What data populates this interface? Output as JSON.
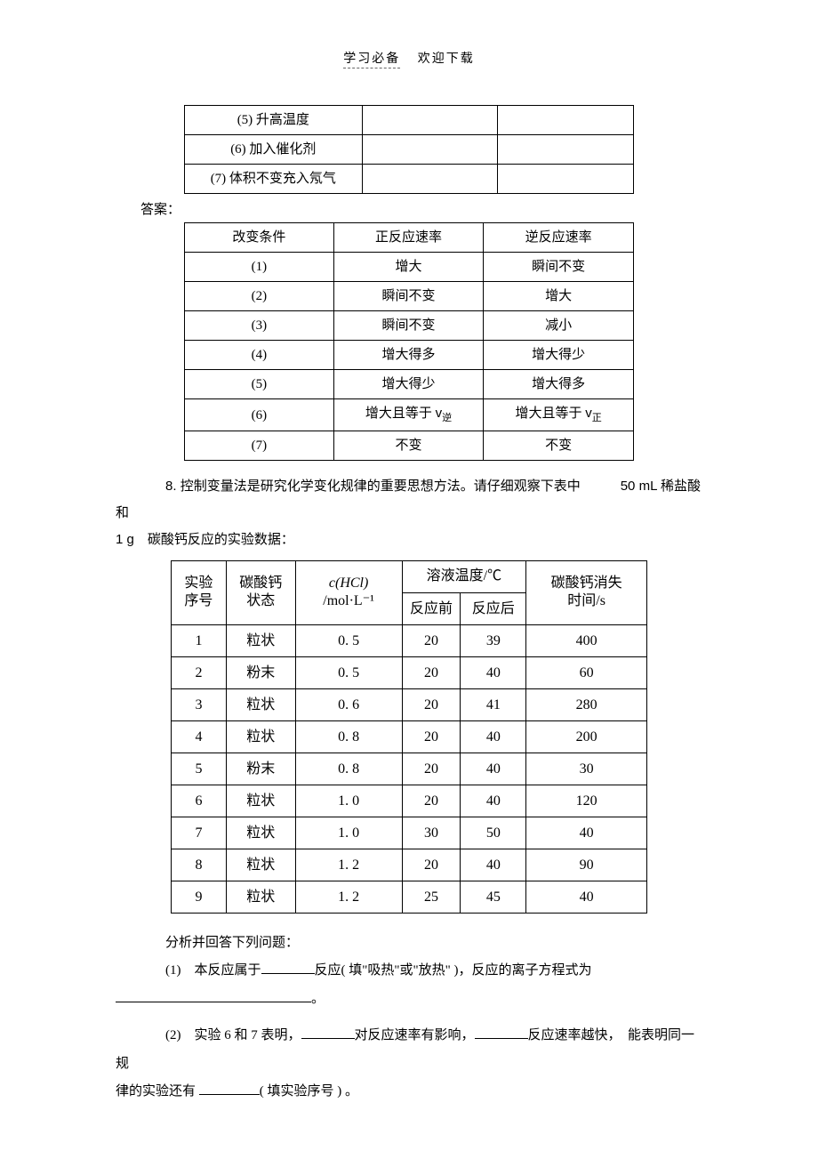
{
  "header": {
    "left": "学习必备",
    "right": "欢迎下载"
  },
  "table1": {
    "rows": [
      {
        "c1": "(5) 升高温度",
        "c2": "",
        "c3": ""
      },
      {
        "c1": "(6) 加入催化剂",
        "c2": "",
        "c3": ""
      },
      {
        "c1": "(7) 体积不变充入氖气",
        "c2": "",
        "c3": ""
      }
    ]
  },
  "answer_label": "答案：",
  "table2": {
    "header": {
      "c1": "改变条件",
      "c2": "正反应速率",
      "c3": "逆反应速率"
    },
    "rows": [
      {
        "c1": "(1)",
        "c2": "增大",
        "c3": "瞬间不变"
      },
      {
        "c1": "(2)",
        "c2": "瞬间不变",
        "c3": "增大"
      },
      {
        "c1": "(3)",
        "c2": "瞬间不变",
        "c3": "减小"
      },
      {
        "c1": "(4)",
        "c2": "增大得多",
        "c3": "增大得少"
      },
      {
        "c1": "(5)",
        "c2": "增大得少",
        "c3": "增大得多"
      },
      {
        "c1": "(6)",
        "c2_pre": "增大且等于 ",
        "c2_v": "v",
        "c2_sub": "逆",
        "c3_pre": "增大且等于 ",
        "c3_v": "v",
        "c3_sub": "正"
      },
      {
        "c1": "(7)",
        "c2": "不变",
        "c3": "不变"
      }
    ]
  },
  "p8": {
    "num": "8. ",
    "text1": "控制变量法是研究化学变化规律的重要思想方法。请仔细观察下表中",
    "text2": "50 mL 稀盐酸和",
    "text3": "1 g　碳酸钙反应的实验数据："
  },
  "table3": {
    "header": {
      "h1a": "实验",
      "h1b": "序号",
      "h2a": "碳酸钙",
      "h2b": "状态",
      "h3a": "c(HCl)",
      "h3b": "/mol·L⁻¹",
      "h45": "溶液温度/℃",
      "h4": "反应前",
      "h5": "反应后",
      "h6a": "碳酸钙消失",
      "h6b": "时间/s"
    },
    "rows": [
      [
        "1",
        "粒状",
        "0. 5",
        "20",
        "39",
        "400"
      ],
      [
        "2",
        "粉末",
        "0. 5",
        "20",
        "40",
        "60"
      ],
      [
        "3",
        "粒状",
        "0. 6",
        "20",
        "41",
        "280"
      ],
      [
        "4",
        "粒状",
        "0. 8",
        "20",
        "40",
        "200"
      ],
      [
        "5",
        "粉末",
        "0. 8",
        "20",
        "40",
        "30"
      ],
      [
        "6",
        "粒状",
        "1. 0",
        "20",
        "40",
        "120"
      ],
      [
        "7",
        "粒状",
        "1. 0",
        "30",
        "50",
        "40"
      ],
      [
        "8",
        "粒状",
        "1. 2",
        "20",
        "40",
        "90"
      ],
      [
        "9",
        "粒状",
        "1. 2",
        "25",
        "45",
        "40"
      ]
    ]
  },
  "q": {
    "intro": "分析并回答下列问题：",
    "q1a": "(1)　本反应属于",
    "q1b": "反应( 填\"吸热\"或\"放热\" )，反应的离子方程式为",
    "q1c": "。",
    "q2a": "(2)　实验 6 和 7 表明，",
    "q2b": "对反应速率有影响，",
    "q2c": "反应速率越快，　能表明同一规",
    "q2d": "律的实验还有 ",
    "q2e": "( 填实验序号 ) 。"
  }
}
